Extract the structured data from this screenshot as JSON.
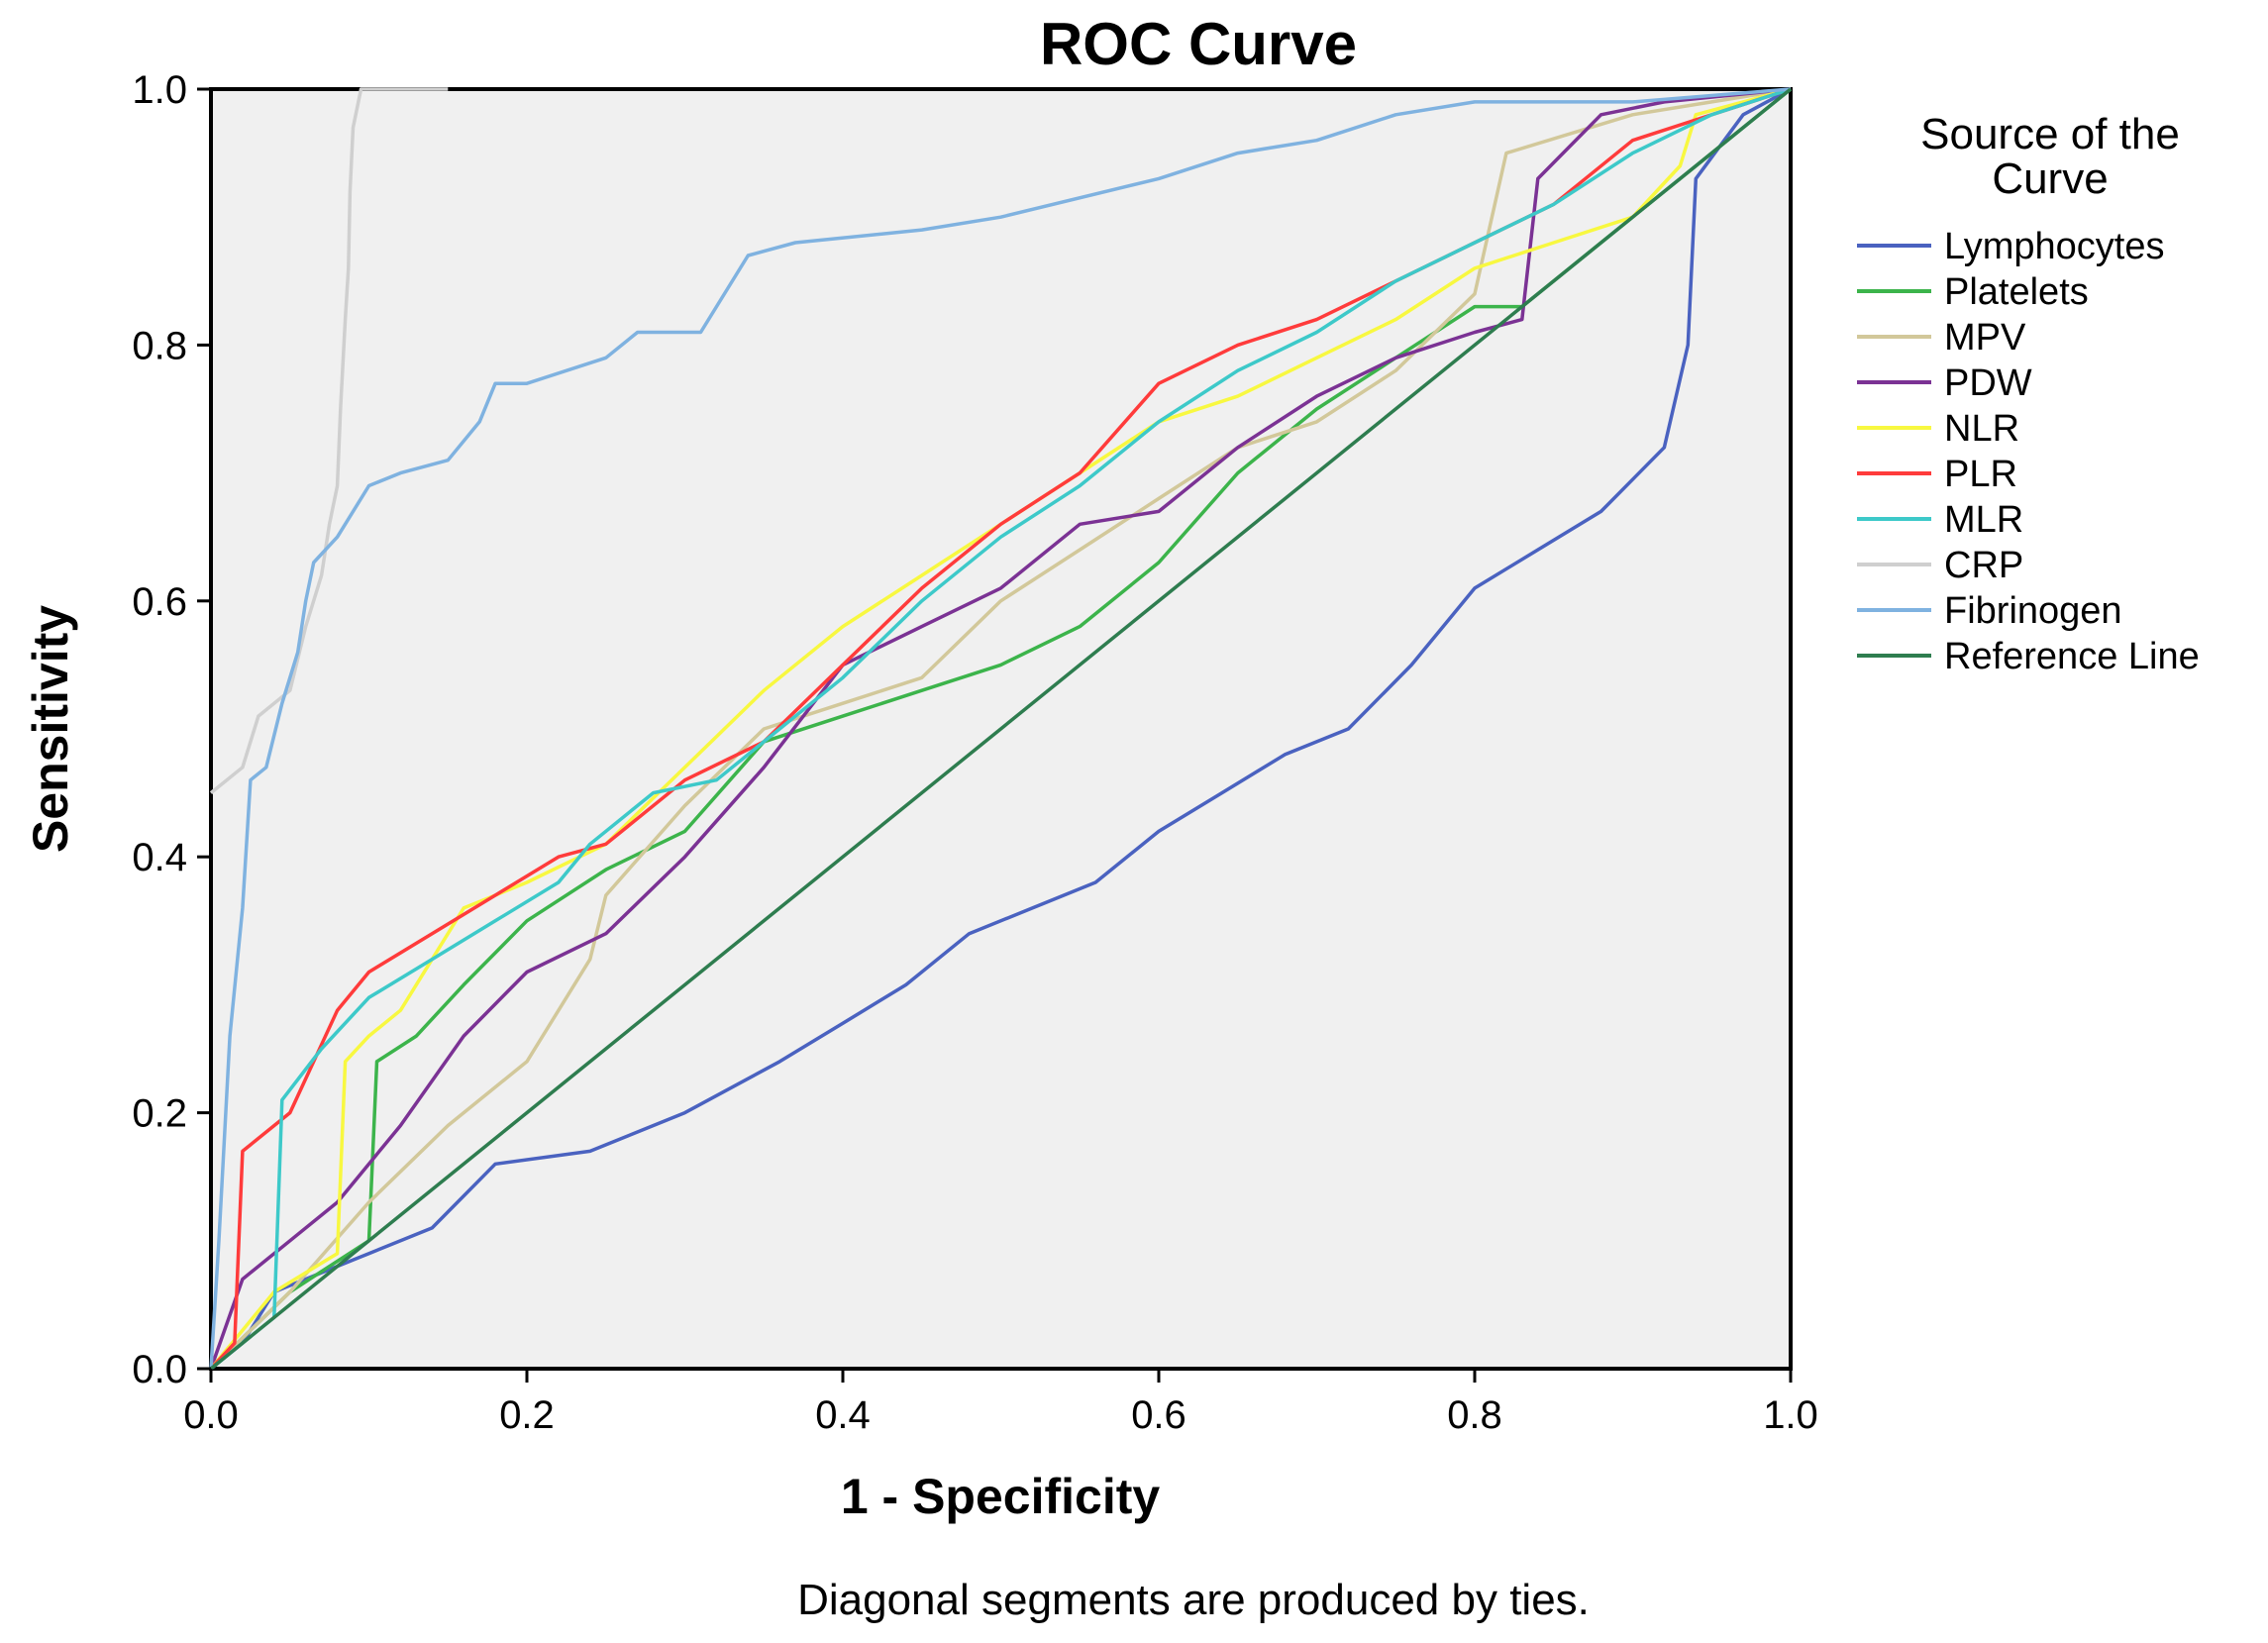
{
  "chart_data": {
    "type": "line",
    "title": "ROC Curve",
    "xlabel": "1 - Specificity",
    "ylabel": "Sensitivity",
    "xlim": [
      0,
      1
    ],
    "ylim": [
      0,
      1
    ],
    "x_ticks": [
      "0.0",
      "0.2",
      "0.4",
      "0.6",
      "0.8",
      "1.0"
    ],
    "y_ticks": [
      "0.0",
      "0.2",
      "0.4",
      "0.6",
      "0.8",
      "1.0"
    ],
    "grid": false,
    "legend_title": "Source of the Curve",
    "legend_position": "right",
    "note": "Diagonal segments are produced by ties.",
    "series": [
      {
        "name": "Lymphocytes",
        "color": "#4a62c0",
        "points": [
          [
            0,
            0
          ],
          [
            0.02,
            0.02
          ],
          [
            0.04,
            0.06
          ],
          [
            0.08,
            0.08
          ],
          [
            0.1,
            0.09
          ],
          [
            0.14,
            0.11
          ],
          [
            0.18,
            0.16
          ],
          [
            0.24,
            0.17
          ],
          [
            0.3,
            0.2
          ],
          [
            0.36,
            0.24
          ],
          [
            0.4,
            0.27
          ],
          [
            0.44,
            0.3
          ],
          [
            0.48,
            0.34
          ],
          [
            0.52,
            0.36
          ],
          [
            0.56,
            0.38
          ],
          [
            0.6,
            0.42
          ],
          [
            0.64,
            0.45
          ],
          [
            0.68,
            0.48
          ],
          [
            0.72,
            0.5
          ],
          [
            0.76,
            0.55
          ],
          [
            0.8,
            0.61
          ],
          [
            0.84,
            0.64
          ],
          [
            0.88,
            0.67
          ],
          [
            0.92,
            0.72
          ],
          [
            0.935,
            0.8
          ],
          [
            0.94,
            0.93
          ],
          [
            0.97,
            0.98
          ],
          [
            1,
            1
          ]
        ]
      },
      {
        "name": "Platelets",
        "color": "#3cb44b",
        "points": [
          [
            0,
            0
          ],
          [
            0.05,
            0.06
          ],
          [
            0.1,
            0.1
          ],
          [
            0.105,
            0.24
          ],
          [
            0.13,
            0.26
          ],
          [
            0.16,
            0.3
          ],
          [
            0.2,
            0.35
          ],
          [
            0.25,
            0.39
          ],
          [
            0.3,
            0.42
          ],
          [
            0.35,
            0.49
          ],
          [
            0.4,
            0.51
          ],
          [
            0.45,
            0.53
          ],
          [
            0.5,
            0.55
          ],
          [
            0.55,
            0.58
          ],
          [
            0.6,
            0.63
          ],
          [
            0.65,
            0.7
          ],
          [
            0.7,
            0.75
          ],
          [
            0.75,
            0.79
          ],
          [
            0.8,
            0.83
          ],
          [
            0.83,
            0.83
          ],
          [
            0.88,
            0.88
          ],
          [
            0.92,
            0.92
          ],
          [
            0.95,
            0.95
          ],
          [
            1,
            1
          ]
        ]
      },
      {
        "name": "MPV",
        "color": "#d2c89a",
        "points": [
          [
            0,
            0
          ],
          [
            0.05,
            0.06
          ],
          [
            0.1,
            0.13
          ],
          [
            0.15,
            0.19
          ],
          [
            0.2,
            0.24
          ],
          [
            0.24,
            0.32
          ],
          [
            0.25,
            0.37
          ],
          [
            0.3,
            0.44
          ],
          [
            0.35,
            0.5
          ],
          [
            0.4,
            0.52
          ],
          [
            0.45,
            0.54
          ],
          [
            0.5,
            0.6
          ],
          [
            0.55,
            0.64
          ],
          [
            0.6,
            0.68
          ],
          [
            0.65,
            0.72
          ],
          [
            0.7,
            0.74
          ],
          [
            0.75,
            0.78
          ],
          [
            0.8,
            0.84
          ],
          [
            0.82,
            0.95
          ],
          [
            0.9,
            0.98
          ],
          [
            1,
            1
          ]
        ]
      },
      {
        "name": "PDW",
        "color": "#7b3294",
        "points": [
          [
            0,
            0
          ],
          [
            0.02,
            0.07
          ],
          [
            0.05,
            0.1
          ],
          [
            0.08,
            0.13
          ],
          [
            0.12,
            0.19
          ],
          [
            0.16,
            0.26
          ],
          [
            0.2,
            0.31
          ],
          [
            0.25,
            0.34
          ],
          [
            0.3,
            0.4
          ],
          [
            0.35,
            0.47
          ],
          [
            0.4,
            0.55
          ],
          [
            0.45,
            0.58
          ],
          [
            0.5,
            0.61
          ],
          [
            0.55,
            0.66
          ],
          [
            0.6,
            0.67
          ],
          [
            0.65,
            0.72
          ],
          [
            0.7,
            0.76
          ],
          [
            0.75,
            0.79
          ],
          [
            0.8,
            0.81
          ],
          [
            0.83,
            0.82
          ],
          [
            0.84,
            0.93
          ],
          [
            0.88,
            0.98
          ],
          [
            0.92,
            0.99
          ],
          [
            1,
            1
          ]
        ]
      },
      {
        "name": "NLR",
        "color": "#f8f840",
        "points": [
          [
            0,
            0
          ],
          [
            0.04,
            0.06
          ],
          [
            0.08,
            0.09
          ],
          [
            0.085,
            0.24
          ],
          [
            0.1,
            0.26
          ],
          [
            0.12,
            0.28
          ],
          [
            0.16,
            0.36
          ],
          [
            0.2,
            0.38
          ],
          [
            0.25,
            0.41
          ],
          [
            0.3,
            0.47
          ],
          [
            0.35,
            0.53
          ],
          [
            0.4,
            0.58
          ],
          [
            0.45,
            0.62
          ],
          [
            0.5,
            0.66
          ],
          [
            0.55,
            0.7
          ],
          [
            0.6,
            0.74
          ],
          [
            0.65,
            0.76
          ],
          [
            0.7,
            0.79
          ],
          [
            0.75,
            0.82
          ],
          [
            0.8,
            0.86
          ],
          [
            0.85,
            0.88
          ],
          [
            0.9,
            0.9
          ],
          [
            0.93,
            0.94
          ],
          [
            0.94,
            0.98
          ],
          [
            1,
            1
          ]
        ]
      },
      {
        "name": "PLR",
        "color": "#ff3b3b",
        "points": [
          [
            0,
            0
          ],
          [
            0.015,
            0.02
          ],
          [
            0.02,
            0.17
          ],
          [
            0.05,
            0.2
          ],
          [
            0.08,
            0.28
          ],
          [
            0.1,
            0.31
          ],
          [
            0.14,
            0.34
          ],
          [
            0.18,
            0.37
          ],
          [
            0.22,
            0.4
          ],
          [
            0.25,
            0.41
          ],
          [
            0.3,
            0.46
          ],
          [
            0.35,
            0.49
          ],
          [
            0.4,
            0.55
          ],
          [
            0.45,
            0.61
          ],
          [
            0.5,
            0.66
          ],
          [
            0.55,
            0.7
          ],
          [
            0.6,
            0.77
          ],
          [
            0.65,
            0.8
          ],
          [
            0.7,
            0.82
          ],
          [
            0.75,
            0.85
          ],
          [
            0.8,
            0.88
          ],
          [
            0.85,
            0.91
          ],
          [
            0.9,
            0.96
          ],
          [
            0.95,
            0.98
          ],
          [
            1,
            1
          ]
        ]
      },
      {
        "name": "MLR",
        "color": "#3dc9c9",
        "points": [
          [
            0,
            0
          ],
          [
            0.04,
            0.04
          ],
          [
            0.045,
            0.21
          ],
          [
            0.07,
            0.25
          ],
          [
            0.1,
            0.29
          ],
          [
            0.14,
            0.32
          ],
          [
            0.18,
            0.35
          ],
          [
            0.22,
            0.38
          ],
          [
            0.24,
            0.41
          ],
          [
            0.28,
            0.45
          ],
          [
            0.32,
            0.46
          ],
          [
            0.36,
            0.5
          ],
          [
            0.4,
            0.54
          ],
          [
            0.45,
            0.6
          ],
          [
            0.5,
            0.65
          ],
          [
            0.55,
            0.69
          ],
          [
            0.6,
            0.74
          ],
          [
            0.65,
            0.78
          ],
          [
            0.7,
            0.81
          ],
          [
            0.75,
            0.85
          ],
          [
            0.8,
            0.88
          ],
          [
            0.85,
            0.91
          ],
          [
            0.9,
            0.95
          ],
          [
            0.95,
            0.98
          ],
          [
            1,
            1
          ]
        ]
      },
      {
        "name": "CRP",
        "color": "#cfcfcf",
        "points": [
          [
            0,
            0.45
          ],
          [
            0.02,
            0.47
          ],
          [
            0.03,
            0.51
          ],
          [
            0.05,
            0.53
          ],
          [
            0.06,
            0.58
          ],
          [
            0.07,
            0.62
          ],
          [
            0.075,
            0.66
          ],
          [
            0.08,
            0.69
          ],
          [
            0.082,
            0.75
          ],
          [
            0.085,
            0.82
          ],
          [
            0.087,
            0.86
          ],
          [
            0.088,
            0.92
          ],
          [
            0.09,
            0.97
          ],
          [
            0.095,
            1
          ],
          [
            0.15,
            1
          ]
        ]
      },
      {
        "name": "Fibrinogen",
        "color": "#7fb2e0",
        "points": [
          [
            0,
            0
          ],
          [
            0.005,
            0.1
          ],
          [
            0.012,
            0.26
          ],
          [
            0.02,
            0.36
          ],
          [
            0.025,
            0.46
          ],
          [
            0.035,
            0.47
          ],
          [
            0.045,
            0.52
          ],
          [
            0.055,
            0.56
          ],
          [
            0.06,
            0.6
          ],
          [
            0.065,
            0.63
          ],
          [
            0.08,
            0.65
          ],
          [
            0.1,
            0.69
          ],
          [
            0.12,
            0.7
          ],
          [
            0.15,
            0.71
          ],
          [
            0.17,
            0.74
          ],
          [
            0.18,
            0.77
          ],
          [
            0.2,
            0.77
          ],
          [
            0.25,
            0.79
          ],
          [
            0.27,
            0.81
          ],
          [
            0.31,
            0.81
          ],
          [
            0.34,
            0.87
          ],
          [
            0.37,
            0.88
          ],
          [
            0.45,
            0.89
          ],
          [
            0.5,
            0.9
          ],
          [
            0.6,
            0.93
          ],
          [
            0.65,
            0.95
          ],
          [
            0.7,
            0.96
          ],
          [
            0.75,
            0.98
          ],
          [
            0.8,
            0.99
          ],
          [
            0.9,
            0.99
          ],
          [
            1,
            1
          ]
        ]
      },
      {
        "name": "Reference Line",
        "color": "#2e7d4f",
        "points": [
          [
            0,
            0
          ],
          [
            1,
            1
          ]
        ]
      }
    ]
  }
}
